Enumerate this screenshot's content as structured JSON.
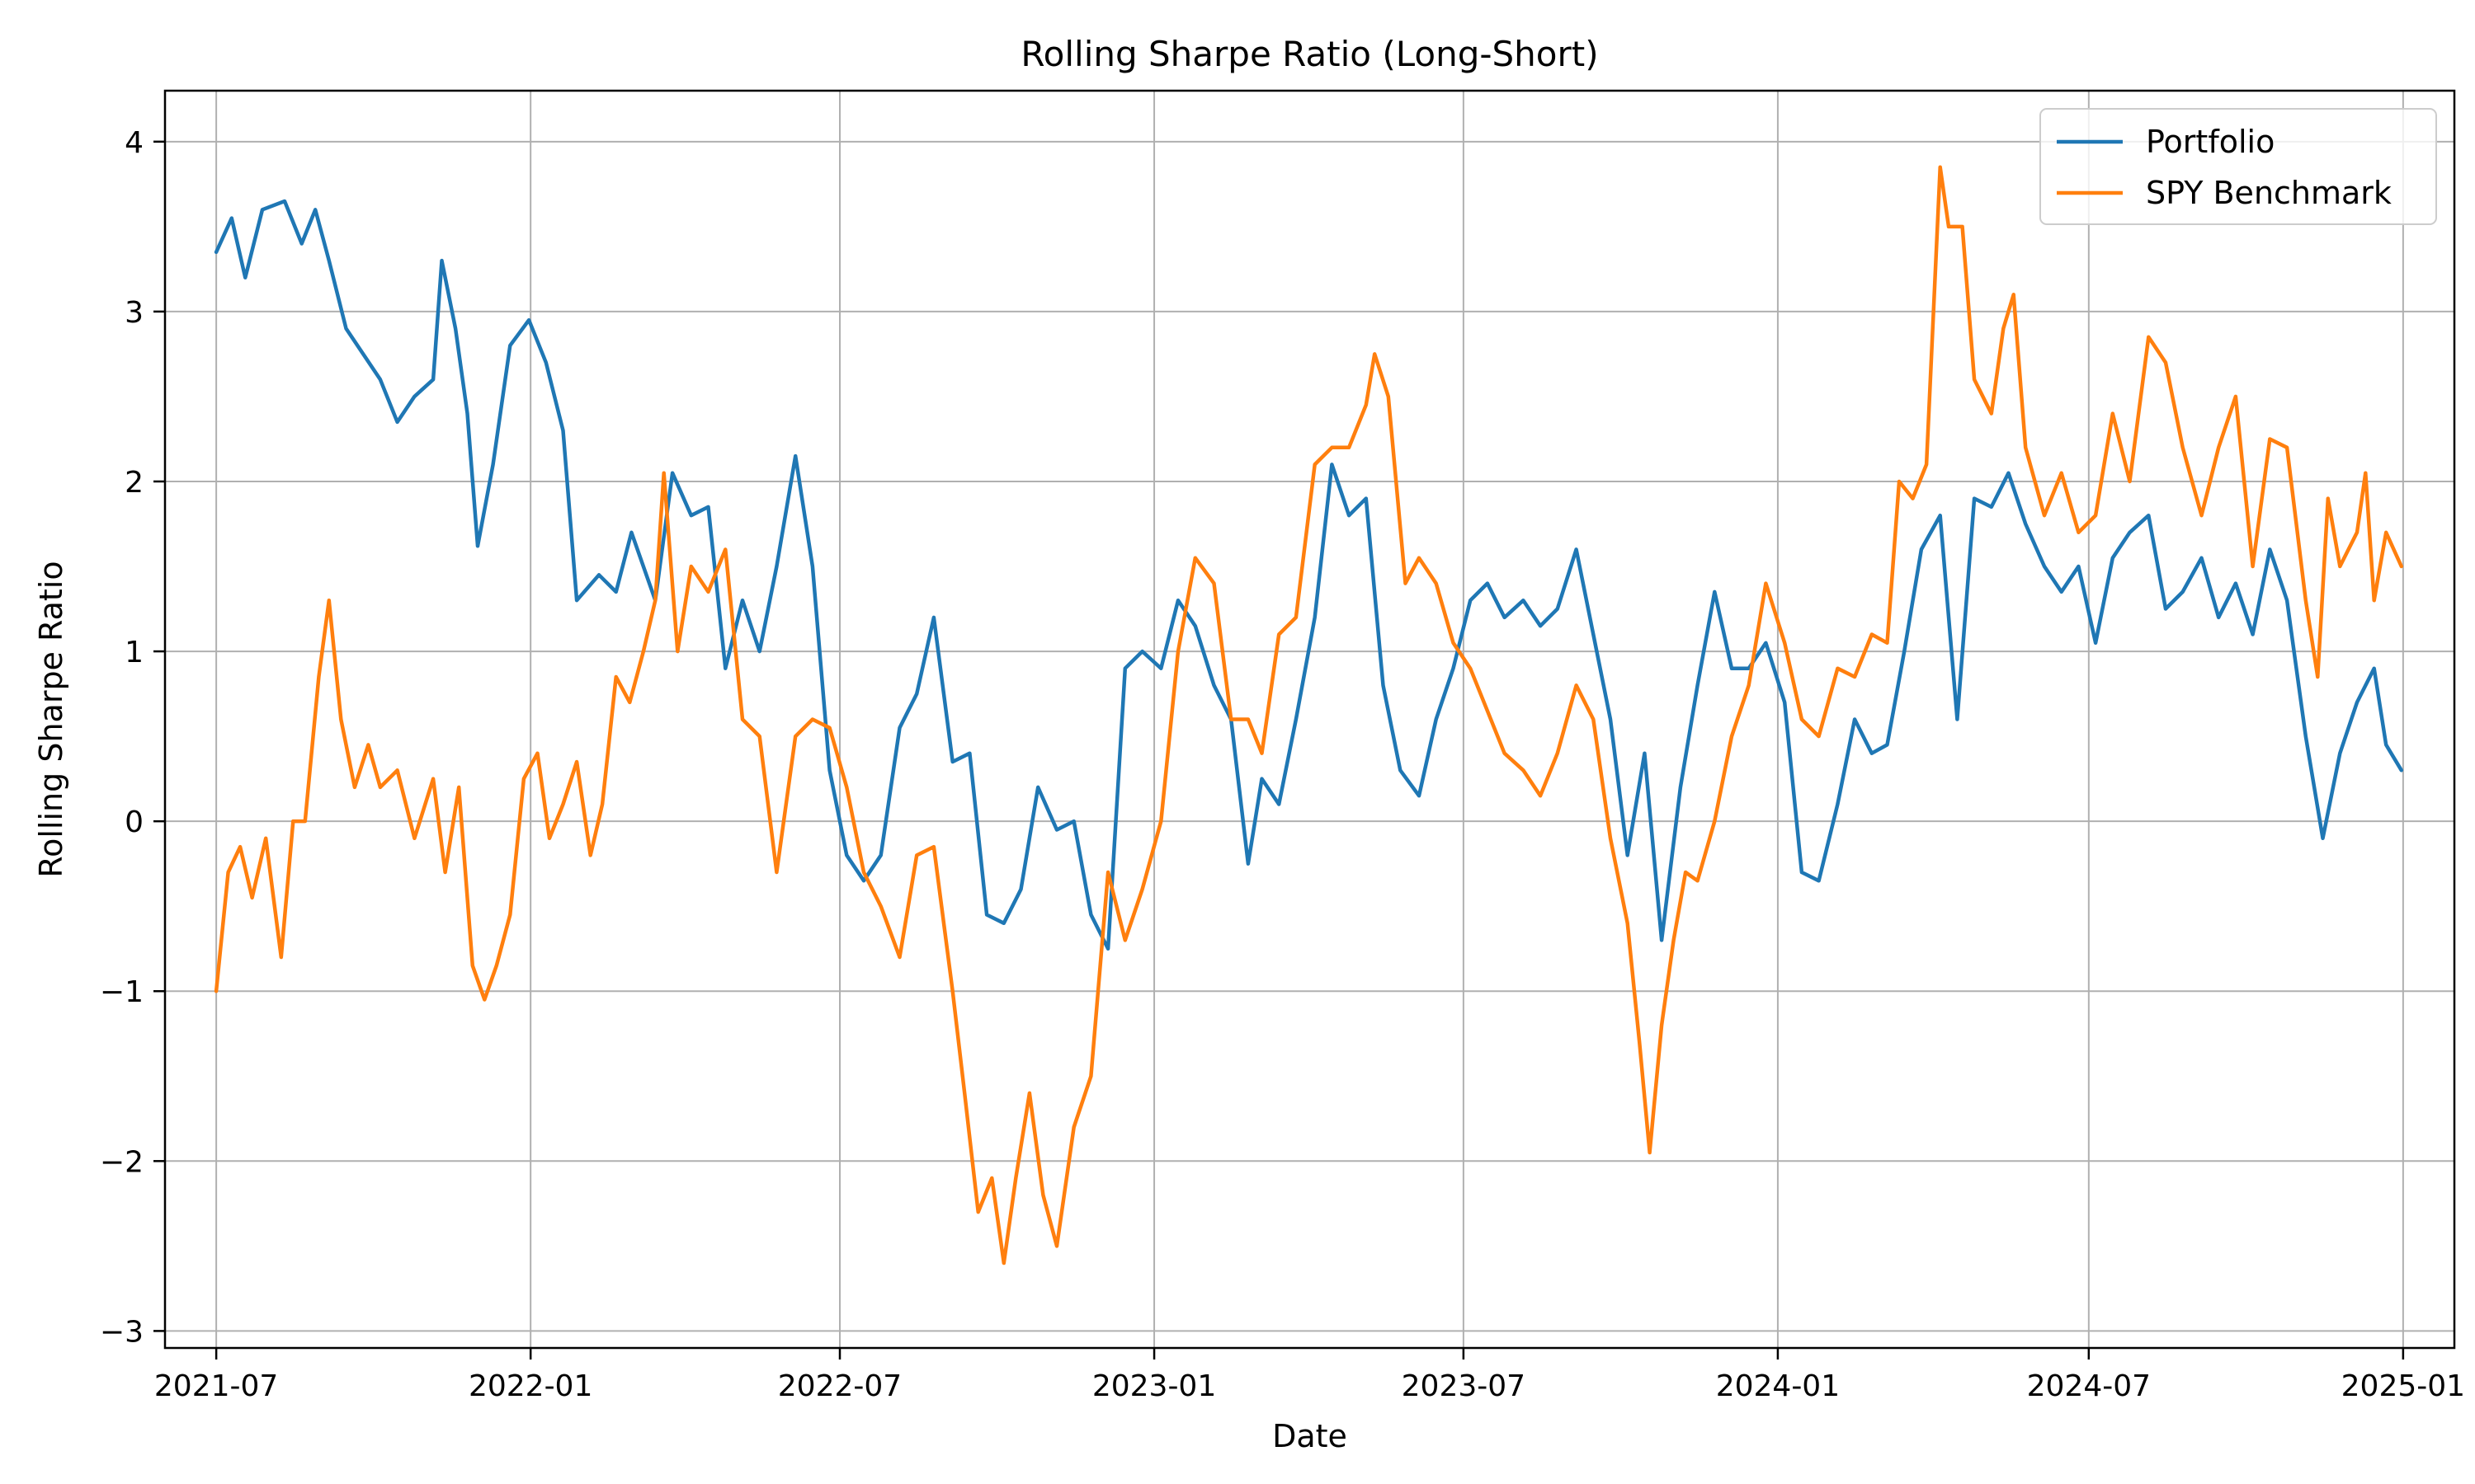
{
  "chart_data": {
    "type": "line",
    "title": "Rolling Sharpe Ratio (Long-Short)",
    "xlabel": "Date",
    "ylabel": "Rolling Sharpe Ratio",
    "xlim": [
      "2021-06-01",
      "2025-01-31"
    ],
    "ylim": [
      -3.1,
      4.3
    ],
    "yticks": [
      -3,
      -2,
      -1,
      0,
      1,
      2,
      3,
      4
    ],
    "yticklabels": [
      "−3",
      "−2",
      "−1",
      "0",
      "1",
      "2",
      "3",
      "4"
    ],
    "xticks": [
      "2021-07-01",
      "2022-01-01",
      "2022-07-01",
      "2023-01-01",
      "2023-07-01",
      "2024-01-01",
      "2024-07-01",
      "2025-01-01"
    ],
    "xticklabels": [
      "2021-07",
      "2022-01",
      "2022-07",
      "2023-01",
      "2023-07",
      "2024-01",
      "2024-07",
      "2025-01"
    ],
    "grid": true,
    "legend_position": "top-right",
    "series": [
      {
        "name": "Portfolio",
        "color": "#1f77b4",
        "points": [
          [
            "2021-07-01",
            3.35
          ],
          [
            "2021-07-10",
            3.55
          ],
          [
            "2021-07-18",
            3.2
          ],
          [
            "2021-07-28",
            3.6
          ],
          [
            "2021-08-10",
            3.65
          ],
          [
            "2021-08-20",
            3.4
          ],
          [
            "2021-08-28",
            3.6
          ],
          [
            "2021-09-05",
            3.3
          ],
          [
            "2021-09-15",
            2.9
          ],
          [
            "2021-09-25",
            2.75
          ],
          [
            "2021-10-05",
            2.6
          ],
          [
            "2021-10-15",
            2.35
          ],
          [
            "2021-10-25",
            2.5
          ],
          [
            "2021-11-05",
            2.6
          ],
          [
            "2021-11-10",
            3.3
          ],
          [
            "2021-11-18",
            2.9
          ],
          [
            "2021-11-25",
            2.4
          ],
          [
            "2021-12-01",
            1.62
          ],
          [
            "2021-12-10",
            2.1
          ],
          [
            "2021-12-20",
            2.8
          ],
          [
            "2021-12-31",
            2.95
          ],
          [
            "2022-01-10",
            2.7
          ],
          [
            "2022-01-20",
            2.3
          ],
          [
            "2022-01-28",
            1.3
          ],
          [
            "2022-02-10",
            1.45
          ],
          [
            "2022-02-20",
            1.35
          ],
          [
            "2022-03-01",
            1.7
          ],
          [
            "2022-03-15",
            1.3
          ],
          [
            "2022-03-25",
            2.05
          ],
          [
            "2022-04-05",
            1.8
          ],
          [
            "2022-04-15",
            1.85
          ],
          [
            "2022-04-25",
            0.9
          ],
          [
            "2022-05-05",
            1.3
          ],
          [
            "2022-05-15",
            1.0
          ],
          [
            "2022-05-25",
            1.5
          ],
          [
            "2022-06-05",
            2.15
          ],
          [
            "2022-06-15",
            1.5
          ],
          [
            "2022-06-25",
            0.3
          ],
          [
            "2022-07-05",
            -0.2
          ],
          [
            "2022-07-15",
            -0.35
          ],
          [
            "2022-07-25",
            -0.2
          ],
          [
            "2022-08-05",
            0.55
          ],
          [
            "2022-08-15",
            0.75
          ],
          [
            "2022-08-25",
            1.2
          ],
          [
            "2022-09-05",
            0.35
          ],
          [
            "2022-09-15",
            0.4
          ],
          [
            "2022-09-25",
            -0.55
          ],
          [
            "2022-10-05",
            -0.6
          ],
          [
            "2022-10-15",
            -0.4
          ],
          [
            "2022-10-25",
            0.2
          ],
          [
            "2022-11-05",
            -0.05
          ],
          [
            "2022-11-15",
            0.0
          ],
          [
            "2022-11-25",
            -0.55
          ],
          [
            "2022-12-05",
            -0.75
          ],
          [
            "2022-12-15",
            0.9
          ],
          [
            "2022-12-25",
            1.0
          ],
          [
            "2023-01-05",
            0.9
          ],
          [
            "2023-01-15",
            1.3
          ],
          [
            "2023-01-25",
            1.15
          ],
          [
            "2023-02-05",
            0.8
          ],
          [
            "2023-02-15",
            0.6
          ],
          [
            "2023-02-25",
            -0.25
          ],
          [
            "2023-03-05",
            0.25
          ],
          [
            "2023-03-15",
            0.1
          ],
          [
            "2023-03-25",
            0.6
          ],
          [
            "2023-04-05",
            1.2
          ],
          [
            "2023-04-15",
            2.1
          ],
          [
            "2023-04-25",
            1.8
          ],
          [
            "2023-05-05",
            1.9
          ],
          [
            "2023-05-15",
            0.8
          ],
          [
            "2023-05-25",
            0.3
          ],
          [
            "2023-06-05",
            0.15
          ],
          [
            "2023-06-15",
            0.6
          ],
          [
            "2023-06-25",
            0.9
          ],
          [
            "2023-07-05",
            1.3
          ],
          [
            "2023-07-15",
            1.4
          ],
          [
            "2023-07-25",
            1.2
          ],
          [
            "2023-08-05",
            1.3
          ],
          [
            "2023-08-15",
            1.15
          ],
          [
            "2023-08-25",
            1.25
          ],
          [
            "2023-09-05",
            1.6
          ],
          [
            "2023-09-15",
            1.1
          ],
          [
            "2023-09-25",
            0.6
          ],
          [
            "2023-10-05",
            -0.2
          ],
          [
            "2023-10-15",
            0.4
          ],
          [
            "2023-10-25",
            -0.7
          ],
          [
            "2023-11-05",
            0.2
          ],
          [
            "2023-11-15",
            0.8
          ],
          [
            "2023-11-25",
            1.35
          ],
          [
            "2023-12-05",
            0.9
          ],
          [
            "2023-12-15",
            0.9
          ],
          [
            "2023-12-25",
            1.05
          ],
          [
            "2024-01-05",
            0.7
          ],
          [
            "2024-01-15",
            -0.3
          ],
          [
            "2024-01-25",
            -0.35
          ],
          [
            "2024-02-05",
            0.1
          ],
          [
            "2024-02-15",
            0.6
          ],
          [
            "2024-02-25",
            0.4
          ],
          [
            "2024-03-05",
            0.45
          ],
          [
            "2024-03-15",
            1.0
          ],
          [
            "2024-03-25",
            1.6
          ],
          [
            "2024-04-05",
            1.8
          ],
          [
            "2024-04-15",
            0.6
          ],
          [
            "2024-04-25",
            1.9
          ],
          [
            "2024-05-05",
            1.85
          ],
          [
            "2024-05-15",
            2.05
          ],
          [
            "2024-05-25",
            1.75
          ],
          [
            "2024-06-05",
            1.5
          ],
          [
            "2024-06-15",
            1.35
          ],
          [
            "2024-06-25",
            1.5
          ],
          [
            "2024-07-05",
            1.05
          ],
          [
            "2024-07-15",
            1.55
          ],
          [
            "2024-07-25",
            1.7
          ],
          [
            "2024-08-05",
            1.8
          ],
          [
            "2024-08-15",
            1.25
          ],
          [
            "2024-08-25",
            1.35
          ],
          [
            "2024-09-05",
            1.55
          ],
          [
            "2024-09-15",
            1.2
          ],
          [
            "2024-09-25",
            1.4
          ],
          [
            "2024-10-05",
            1.1
          ],
          [
            "2024-10-15",
            1.6
          ],
          [
            "2024-10-25",
            1.3
          ],
          [
            "2024-11-05",
            0.5
          ],
          [
            "2024-11-15",
            -0.1
          ],
          [
            "2024-11-25",
            0.4
          ],
          [
            "2024-12-05",
            0.7
          ],
          [
            "2024-12-15",
            0.9
          ],
          [
            "2024-12-22",
            0.45
          ],
          [
            "2024-12-31",
            0.3
          ]
        ]
      },
      {
        "name": "SPY Benchmark",
        "color": "#ff7f0e",
        "points": [
          [
            "2021-07-01",
            -1.0
          ],
          [
            "2021-07-08",
            -0.3
          ],
          [
            "2021-07-15",
            -0.15
          ],
          [
            "2021-07-22",
            -0.45
          ],
          [
            "2021-07-30",
            -0.1
          ],
          [
            "2021-08-08",
            -0.8
          ],
          [
            "2021-08-15",
            0.0
          ],
          [
            "2021-08-22",
            0.0
          ],
          [
            "2021-08-30",
            0.85
          ],
          [
            "2021-09-05",
            1.3
          ],
          [
            "2021-09-12",
            0.6
          ],
          [
            "2021-09-20",
            0.2
          ],
          [
            "2021-09-28",
            0.45
          ],
          [
            "2021-10-05",
            0.2
          ],
          [
            "2021-10-15",
            0.3
          ],
          [
            "2021-10-25",
            -0.1
          ],
          [
            "2021-11-05",
            0.25
          ],
          [
            "2021-11-12",
            -0.3
          ],
          [
            "2021-11-20",
            0.2
          ],
          [
            "2021-11-28",
            -0.85
          ],
          [
            "2021-12-05",
            -1.05
          ],
          [
            "2021-12-12",
            -0.85
          ],
          [
            "2021-12-20",
            -0.55
          ],
          [
            "2021-12-28",
            0.25
          ],
          [
            "2022-01-05",
            0.4
          ],
          [
            "2022-01-12",
            -0.1
          ],
          [
            "2022-01-20",
            0.1
          ],
          [
            "2022-01-28",
            0.35
          ],
          [
            "2022-02-05",
            -0.2
          ],
          [
            "2022-02-12",
            0.1
          ],
          [
            "2022-02-20",
            0.85
          ],
          [
            "2022-02-28",
            0.7
          ],
          [
            "2022-03-08",
            1.0
          ],
          [
            "2022-03-15",
            1.3
          ],
          [
            "2022-03-20",
            2.05
          ],
          [
            "2022-03-28",
            1.0
          ],
          [
            "2022-04-05",
            1.5
          ],
          [
            "2022-04-15",
            1.35
          ],
          [
            "2022-04-25",
            1.6
          ],
          [
            "2022-05-05",
            0.6
          ],
          [
            "2022-05-15",
            0.5
          ],
          [
            "2022-05-25",
            -0.3
          ],
          [
            "2022-06-05",
            0.5
          ],
          [
            "2022-06-15",
            0.6
          ],
          [
            "2022-06-25",
            0.55
          ],
          [
            "2022-07-05",
            0.2
          ],
          [
            "2022-07-15",
            -0.3
          ],
          [
            "2022-07-25",
            -0.5
          ],
          [
            "2022-08-05",
            -0.8
          ],
          [
            "2022-08-15",
            -0.2
          ],
          [
            "2022-08-25",
            -0.15
          ],
          [
            "2022-09-05",
            -1.0
          ],
          [
            "2022-09-12",
            -1.6
          ],
          [
            "2022-09-20",
            -2.3
          ],
          [
            "2022-09-28",
            -2.1
          ],
          [
            "2022-10-05",
            -2.6
          ],
          [
            "2022-10-12",
            -2.1
          ],
          [
            "2022-10-20",
            -1.6
          ],
          [
            "2022-10-28",
            -2.2
          ],
          [
            "2022-11-05",
            -2.5
          ],
          [
            "2022-11-15",
            -1.8
          ],
          [
            "2022-11-25",
            -1.5
          ],
          [
            "2022-12-05",
            -0.3
          ],
          [
            "2022-12-15",
            -0.7
          ],
          [
            "2022-12-25",
            -0.4
          ],
          [
            "2023-01-05",
            0.0
          ],
          [
            "2023-01-15",
            1.0
          ],
          [
            "2023-01-25",
            1.55
          ],
          [
            "2023-02-05",
            1.4
          ],
          [
            "2023-02-15",
            0.6
          ],
          [
            "2023-02-25",
            0.6
          ],
          [
            "2023-03-05",
            0.4
          ],
          [
            "2023-03-15",
            1.1
          ],
          [
            "2023-03-25",
            1.2
          ],
          [
            "2023-04-05",
            2.1
          ],
          [
            "2023-04-15",
            2.2
          ],
          [
            "2023-04-25",
            2.2
          ],
          [
            "2023-05-05",
            2.45
          ],
          [
            "2023-05-10",
            2.75
          ],
          [
            "2023-05-18",
            2.5
          ],
          [
            "2023-05-28",
            1.4
          ],
          [
            "2023-06-05",
            1.55
          ],
          [
            "2023-06-15",
            1.4
          ],
          [
            "2023-06-25",
            1.05
          ],
          [
            "2023-07-05",
            0.9
          ],
          [
            "2023-07-15",
            0.65
          ],
          [
            "2023-07-25",
            0.4
          ],
          [
            "2023-08-05",
            0.3
          ],
          [
            "2023-08-15",
            0.15
          ],
          [
            "2023-08-25",
            0.4
          ],
          [
            "2023-09-05",
            0.8
          ],
          [
            "2023-09-15",
            0.6
          ],
          [
            "2023-09-25",
            -0.1
          ],
          [
            "2023-10-05",
            -0.6
          ],
          [
            "2023-10-12",
            -1.3
          ],
          [
            "2023-10-18",
            -1.95
          ],
          [
            "2023-10-25",
            -1.2
          ],
          [
            "2023-11-01",
            -0.7
          ],
          [
            "2023-11-08",
            -0.3
          ],
          [
            "2023-11-15",
            -0.35
          ],
          [
            "2023-11-25",
            0.0
          ],
          [
            "2023-12-05",
            0.5
          ],
          [
            "2023-12-15",
            0.8
          ],
          [
            "2023-12-25",
            1.4
          ],
          [
            "2024-01-05",
            1.05
          ],
          [
            "2024-01-15",
            0.6
          ],
          [
            "2024-01-25",
            0.5
          ],
          [
            "2024-02-05",
            0.9
          ],
          [
            "2024-02-15",
            0.85
          ],
          [
            "2024-02-25",
            1.1
          ],
          [
            "2024-03-05",
            1.05
          ],
          [
            "2024-03-12",
            2.0
          ],
          [
            "2024-03-20",
            1.9
          ],
          [
            "2024-03-28",
            2.1
          ],
          [
            "2024-04-05",
            3.85
          ],
          [
            "2024-04-10",
            3.5
          ],
          [
            "2024-04-18",
            3.5
          ],
          [
            "2024-04-25",
            2.6
          ],
          [
            "2024-05-05",
            2.4
          ],
          [
            "2024-05-12",
            2.9
          ],
          [
            "2024-05-18",
            3.1
          ],
          [
            "2024-05-25",
            2.2
          ],
          [
            "2024-06-05",
            1.8
          ],
          [
            "2024-06-15",
            2.05
          ],
          [
            "2024-06-25",
            1.7
          ],
          [
            "2024-07-05",
            1.8
          ],
          [
            "2024-07-15",
            2.4
          ],
          [
            "2024-07-25",
            2.0
          ],
          [
            "2024-08-05",
            2.85
          ],
          [
            "2024-08-15",
            2.7
          ],
          [
            "2024-08-25",
            2.2
          ],
          [
            "2024-09-05",
            1.8
          ],
          [
            "2024-09-15",
            2.2
          ],
          [
            "2024-09-25",
            2.5
          ],
          [
            "2024-10-05",
            1.5
          ],
          [
            "2024-10-15",
            2.25
          ],
          [
            "2024-10-25",
            2.2
          ],
          [
            "2024-11-05",
            1.3
          ],
          [
            "2024-11-12",
            0.85
          ],
          [
            "2024-11-18",
            1.9
          ],
          [
            "2024-11-25",
            1.5
          ],
          [
            "2024-12-05",
            1.7
          ],
          [
            "2024-12-10",
            2.05
          ],
          [
            "2024-12-15",
            1.3
          ],
          [
            "2024-12-22",
            1.7
          ],
          [
            "2024-12-31",
            1.5
          ]
        ]
      }
    ]
  }
}
